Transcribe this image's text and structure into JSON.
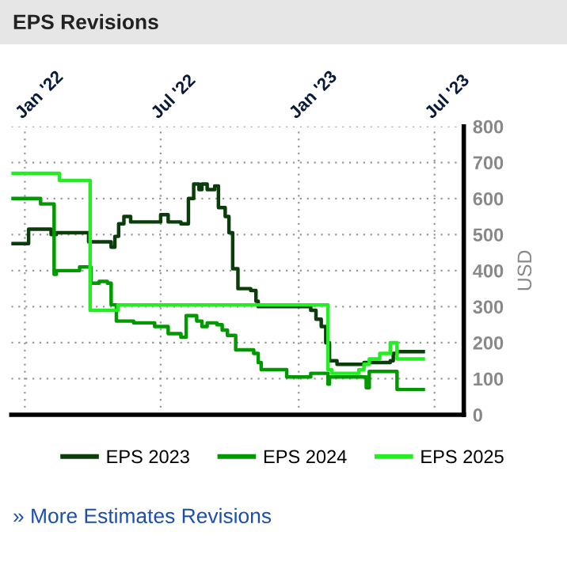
{
  "chart_data": {
    "type": "step",
    "title": "EPS Revisions",
    "ylabel": "USD",
    "xlim": [
      "2021-12-14",
      "2023-08-09"
    ],
    "ylim": [
      0,
      800
    ],
    "xticks": [
      {
        "value": "2022-01-01",
        "label": "Jan '22"
      },
      {
        "value": "2022-07-01",
        "label": "Jul '22"
      },
      {
        "value": "2023-01-01",
        "label": "Jan '23"
      },
      {
        "value": "2023-07-01",
        "label": "Jul '23"
      }
    ],
    "yticks": [
      0,
      100,
      200,
      300,
      400,
      500,
      600,
      700,
      800
    ],
    "grid": true,
    "legend": "bottom",
    "marker": "none",
    "line_style": "solid",
    "annotations": [
      "» More Estimates Revisions"
    ],
    "series": [
      {
        "name": "EPS 2023",
        "color": "#0a3d0a",
        "x": [
          "2021-12-14",
          "2022-01-06",
          "2022-02-05",
          "2022-02-12",
          "2022-03-27",
          "2022-04-26",
          "2022-05-01",
          "2022-05-06",
          "2022-05-13",
          "2022-05-22",
          "2022-06-23",
          "2022-07-01",
          "2022-07-11",
          "2022-07-28",
          "2022-08-07",
          "2022-08-14",
          "2022-08-21",
          "2022-08-25",
          "2022-09-01",
          "2022-09-11",
          "2022-09-16",
          "2022-09-25",
          "2022-09-30",
          "2022-10-05",
          "2022-10-12",
          "2022-10-29",
          "2022-11-05",
          "2022-11-08",
          "2023-01-17",
          "2023-01-24",
          "2023-01-31",
          "2023-02-06",
          "2023-02-11",
          "2023-02-21",
          "2023-03-29",
          "2023-05-03",
          "2023-05-07",
          "2023-05-12",
          "2023-06-16"
        ],
        "values": [
          475,
          515,
          500,
          505,
          480,
          465,
          495,
          530,
          550,
          535,
          535,
          555,
          535,
          530,
          600,
          640,
          625,
          640,
          625,
          635,
          575,
          550,
          505,
          405,
          350,
          345,
          315,
          300,
          290,
          265,
          245,
          200,
          150,
          140,
          145,
          150,
          170,
          175,
          175
        ]
      },
      {
        "name": "EPS 2024",
        "color": "#009900",
        "x": [
          "2021-12-14",
          "2022-01-22",
          "2022-02-09",
          "2022-02-12",
          "2022-03-09",
          "2022-03-15",
          "2022-03-30",
          "2022-04-10",
          "2022-04-21",
          "2022-04-26",
          "2022-05-03",
          "2022-05-26",
          "2022-06-23",
          "2022-07-11",
          "2022-07-28",
          "2022-08-04",
          "2022-08-18",
          "2022-08-25",
          "2022-09-01",
          "2022-09-14",
          "2022-09-21",
          "2022-09-28",
          "2022-10-09",
          "2022-11-02",
          "2022-11-08",
          "2022-11-12",
          "2022-12-16",
          "2023-01-17",
          "2023-02-06",
          "2023-02-09",
          "2023-02-11",
          "2023-04-01",
          "2023-04-05",
          "2023-05-12",
          "2023-06-16"
        ],
        "values": [
          600,
          585,
          390,
          400,
          400,
          410,
          365,
          370,
          365,
          305,
          260,
          255,
          245,
          225,
          215,
          275,
          260,
          245,
          255,
          250,
          235,
          220,
          180,
          170,
          145,
          125,
          105,
          115,
          115,
          85,
          105,
          75,
          120,
          70,
          70
        ]
      },
      {
        "name": "EPS 2025",
        "color": "#22ee22",
        "x": [
          "2021-12-14",
          "2022-02-12",
          "2022-02-16",
          "2022-03-29",
          "2022-05-05",
          "2023-02-09",
          "2023-02-14",
          "2023-03-22",
          "2023-03-29",
          "2023-04-05",
          "2023-04-19",
          "2023-05-03",
          "2023-05-12",
          "2023-06-16"
        ],
        "values": [
          670,
          670,
          650,
          290,
          305,
          125,
          115,
          125,
          140,
          155,
          170,
          200,
          155,
          155
        ]
      }
    ]
  }
}
